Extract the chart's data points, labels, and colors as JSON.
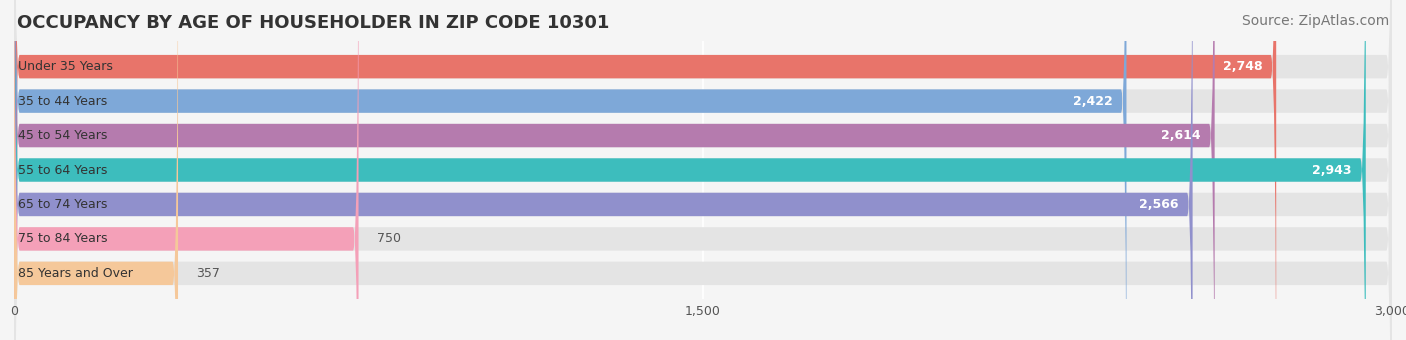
{
  "title": "OCCUPANCY BY AGE OF HOUSEHOLDER IN ZIP CODE 10301",
  "source": "Source: ZipAtlas.com",
  "categories": [
    "Under 35 Years",
    "35 to 44 Years",
    "45 to 54 Years",
    "55 to 64 Years",
    "65 to 74 Years",
    "75 to 84 Years",
    "85 Years and Over"
  ],
  "values": [
    2748,
    2422,
    2614,
    2943,
    2566,
    750,
    357
  ],
  "bar_colors": [
    "#E8746A",
    "#7EA8D8",
    "#B57BAE",
    "#3DBDBD",
    "#9090CC",
    "#F4A0B8",
    "#F5C89A"
  ],
  "xlim": [
    0,
    3000
  ],
  "xticks": [
    0,
    1500,
    3000
  ],
  "xtick_labels": [
    "0",
    "1,500",
    "3,000"
  ],
  "background_color": "#f0f0f0",
  "bar_background_color": "#e8e8e8",
  "title_fontsize": 13,
  "source_fontsize": 10,
  "label_fontsize": 9,
  "value_fontsize": 9,
  "fig_width": 14.06,
  "fig_height": 3.4
}
